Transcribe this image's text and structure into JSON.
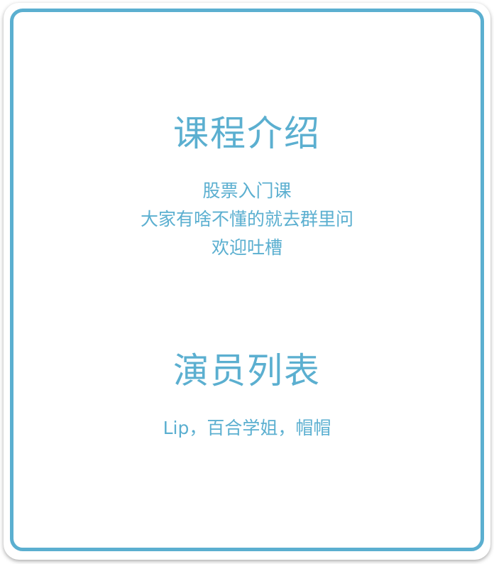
{
  "course": {
    "title": "课程介绍",
    "lines": [
      "股票入门课",
      "大家有啥不懂的就去群里问",
      "欢迎吐槽"
    ]
  },
  "cast": {
    "title": "演员列表",
    "text": "Lip，百合学姐，帽帽"
  },
  "colors": {
    "accent": "#5bafd0",
    "background": "#ffffff"
  }
}
